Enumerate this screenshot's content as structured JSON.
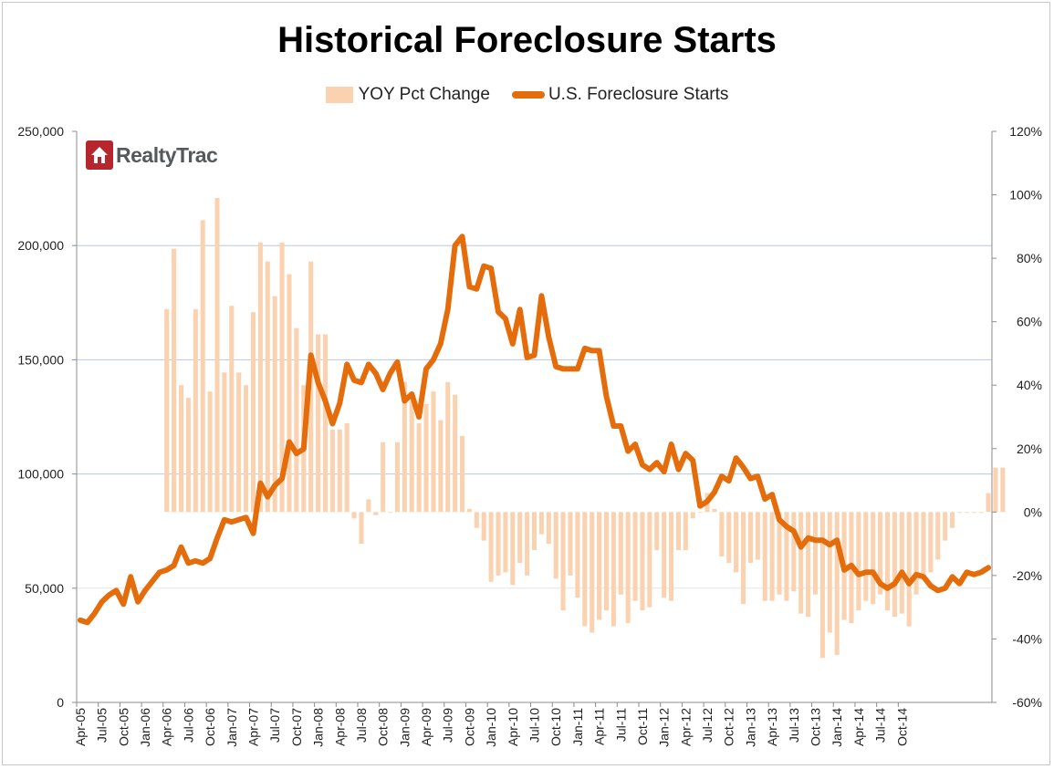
{
  "chart_data": {
    "type": "bar+line",
    "title": "Historical Foreclosure Starts",
    "logo_text": "RealtyTrac",
    "legend": {
      "bar_label": "YOY Pct Change",
      "line_label": "U.S. Foreclosure Starts",
      "placement": "top-center"
    },
    "colors": {
      "bar": "#fad2b0",
      "line": "#e46c0a",
      "grid": "#b7c8e0",
      "logo": "#b5272d"
    },
    "x_tick_labels": [
      "Apr-05",
      "Jul-05",
      "Oct-05",
      "Jan-06",
      "Apr-06",
      "Jul-06",
      "Oct-06",
      "Jan-07",
      "Apr-07",
      "Jul-07",
      "Oct-07",
      "Jan-08",
      "Apr-08",
      "Jul-08",
      "Oct-08",
      "Jan-09",
      "Apr-09",
      "Jul-09",
      "Oct-09",
      "Jan-10",
      "Apr-10",
      "Jul-10",
      "Oct-10",
      "Jan-11",
      "Apr-11",
      "Jul-11",
      "Oct-11",
      "Jan-12",
      "Apr-12",
      "Jul-12",
      "Oct-12",
      "Jan-13",
      "Apr-13",
      "Jul-13",
      "Oct-13",
      "Jan-14",
      "Apr-14",
      "Jul-14",
      "Oct-14"
    ],
    "y_left": {
      "ylim": [
        0,
        250000
      ],
      "ticks": [
        "0",
        "50,000",
        "100,000",
        "150,000",
        "200,000",
        "250,000"
      ],
      "gridlines_at": [
        100000,
        150000,
        200000
      ]
    },
    "y_right": {
      "ylim": [
        -60,
        120
      ],
      "ticks": [
        "-60%",
        "-40%",
        "-20%",
        "0%",
        "20%",
        "40%",
        "60%",
        "80%",
        "100%",
        "120%"
      ]
    },
    "foreclosure_starts": [
      36000,
      35000,
      39000,
      44000,
      47000,
      49000,
      43000,
      55000,
      44000,
      49000,
      53000,
      57000,
      58000,
      60000,
      68000,
      61000,
      62000,
      61000,
      63000,
      72000,
      80000,
      79000,
      80000,
      81000,
      74000,
      96000,
      90000,
      95000,
      98000,
      114000,
      109000,
      111000,
      152000,
      140000,
      132000,
      122000,
      131000,
      148000,
      141000,
      140000,
      148000,
      144000,
      137000,
      144000,
      149000,
      132000,
      135000,
      125000,
      146000,
      150000,
      157000,
      172000,
      200000,
      204000,
      182000,
      181000,
      191000,
      190000,
      171000,
      168000,
      157000,
      172000,
      151000,
      152000,
      178000,
      160000,
      147000,
      146000,
      146000,
      146000,
      155000,
      154000,
      154000,
      134000,
      121000,
      121000,
      110000,
      113000,
      104000,
      102000,
      105000,
      101000,
      113000,
      102000,
      109000,
      106000,
      86000,
      88000,
      92000,
      99000,
      97000,
      107000,
      103000,
      98000,
      99000,
      89000,
      91000,
      80000,
      77000,
      75000,
      68000,
      72000,
      71000,
      71000,
      69000,
      71000,
      58000,
      60000,
      56000,
      57000,
      57000,
      52000,
      50000,
      52000,
      57000,
      52000,
      56000,
      55000,
      51000,
      49000,
      50000,
      55000,
      52000,
      57000,
      56000,
      57000,
      59000
    ],
    "yoy_pct_change": [
      null,
      null,
      null,
      null,
      null,
      null,
      null,
      null,
      null,
      null,
      null,
      null,
      64,
      83,
      40,
      36,
      64,
      92,
      38,
      99,
      44,
      65,
      44,
      40,
      63,
      85,
      79,
      68,
      85,
      75,
      58,
      40,
      79,
      56,
      56,
      26,
      26,
      28,
      -2,
      -10,
      4,
      -1,
      22,
      0,
      22,
      41,
      35,
      28,
      34,
      38,
      29,
      41,
      37,
      24,
      1,
      -5,
      -9,
      -22,
      -20,
      -19,
      -23,
      -16,
      -20,
      -12,
      -7,
      -10,
      -21,
      -31,
      -20,
      -27,
      -36,
      -38,
      -34,
      -31,
      -36,
      -26,
      -35,
      -28,
      -31,
      -30,
      -12,
      -27,
      -28,
      -12,
      -12,
      -2,
      0,
      6,
      1,
      -14,
      -16,
      -19,
      -29,
      -16,
      -15,
      -28,
      -28,
      -26,
      -28,
      -25,
      -32,
      -33,
      -26,
      -46,
      -38,
      -45,
      -34,
      -35,
      -31,
      -28,
      -29,
      -26,
      -31,
      -33,
      -32,
      -36,
      -26,
      -21,
      -19,
      -15,
      -9,
      -5,
      0,
      0,
      0,
      0,
      6,
      14,
      14
    ]
  }
}
